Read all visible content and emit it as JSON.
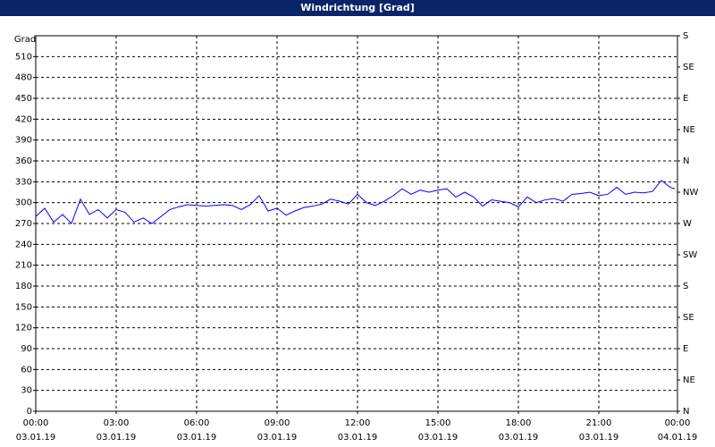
{
  "chart_data": {
    "type": "line",
    "title": "Windrichtung [Grad]",
    "ylabel": "Grad",
    "x": [
      0,
      20,
      40,
      60,
      80,
      100,
      120,
      140,
      160,
      180,
      200,
      220,
      240,
      260,
      280,
      300,
      320,
      340,
      360,
      380,
      400,
      420,
      440,
      460,
      480,
      500,
      520,
      540,
      560,
      580,
      600,
      620,
      640,
      660,
      680,
      700,
      720,
      740,
      760,
      780,
      800,
      820,
      840,
      860,
      880,
      900,
      920,
      940,
      960,
      980,
      1000,
      1020,
      1040,
      1060,
      1080,
      1100,
      1120,
      1140,
      1160,
      1180,
      1200,
      1220,
      1240,
      1260,
      1280,
      1300,
      1320,
      1340,
      1360,
      1380,
      1400,
      1420,
      1430
    ],
    "series": [
      {
        "name": "Windrichtung",
        "color": "#0000ff",
        "values": [
          280,
          292,
          272,
          283,
          270,
          305,
          283,
          290,
          278,
          290,
          286,
          272,
          278,
          270,
          280,
          290,
          294,
          297,
          296,
          295,
          296,
          297,
          296,
          290,
          297,
          310,
          288,
          292,
          282,
          288,
          293,
          295,
          298,
          305,
          302,
          298,
          312,
          300,
          296,
          302,
          310,
          320,
          312,
          318,
          315,
          318,
          320,
          308,
          315,
          308,
          295,
          304,
          302,
          300,
          294,
          308,
          300,
          304,
          306,
          302,
          312,
          313,
          315,
          310,
          312,
          322,
          312,
          315,
          314,
          316,
          332,
          322,
          320
        ]
      }
    ],
    "xlim": [
      0,
      1440
    ],
    "xticks": [
      {
        "value": 0,
        "label": [
          "00:00",
          "03.01.19"
        ]
      },
      {
        "value": 180,
        "label": [
          "03:00",
          "03.01.19"
        ]
      },
      {
        "value": 360,
        "label": [
          "06:00",
          "03.01.19"
        ]
      },
      {
        "value": 540,
        "label": [
          "09:00",
          "03.01.19"
        ]
      },
      {
        "value": 720,
        "label": [
          "12:00",
          "03.01.19"
        ]
      },
      {
        "value": 900,
        "label": [
          "15:00",
          "03.01.19"
        ]
      },
      {
        "value": 1080,
        "label": [
          "18:00",
          "03.01.19"
        ]
      },
      {
        "value": 1260,
        "label": [
          "21:00",
          "03.01.19"
        ]
      },
      {
        "value": 1440,
        "label": [
          "00:00",
          "04.01.19"
        ]
      }
    ],
    "ylim": [
      0,
      540
    ],
    "yticks": [
      0,
      30,
      60,
      90,
      120,
      150,
      180,
      210,
      240,
      270,
      300,
      330,
      360,
      390,
      420,
      450,
      480,
      510
    ],
    "y2lim": [
      0,
      540
    ],
    "y2ticks": [
      {
        "value": 0,
        "label": "N"
      },
      {
        "value": 45,
        "label": "NE"
      },
      {
        "value": 90,
        "label": "E"
      },
      {
        "value": 135,
        "label": "SE"
      },
      {
        "value": 180,
        "label": "S"
      },
      {
        "value": 225,
        "label": "SW"
      },
      {
        "value": 270,
        "label": "W"
      },
      {
        "value": 315,
        "label": "NW"
      },
      {
        "value": 360,
        "label": "N"
      },
      {
        "value": 405,
        "label": "NE"
      },
      {
        "value": 450,
        "label": "E"
      },
      {
        "value": 495,
        "label": "SE"
      },
      {
        "value": 540,
        "label": "S"
      }
    ],
    "grid": true
  }
}
